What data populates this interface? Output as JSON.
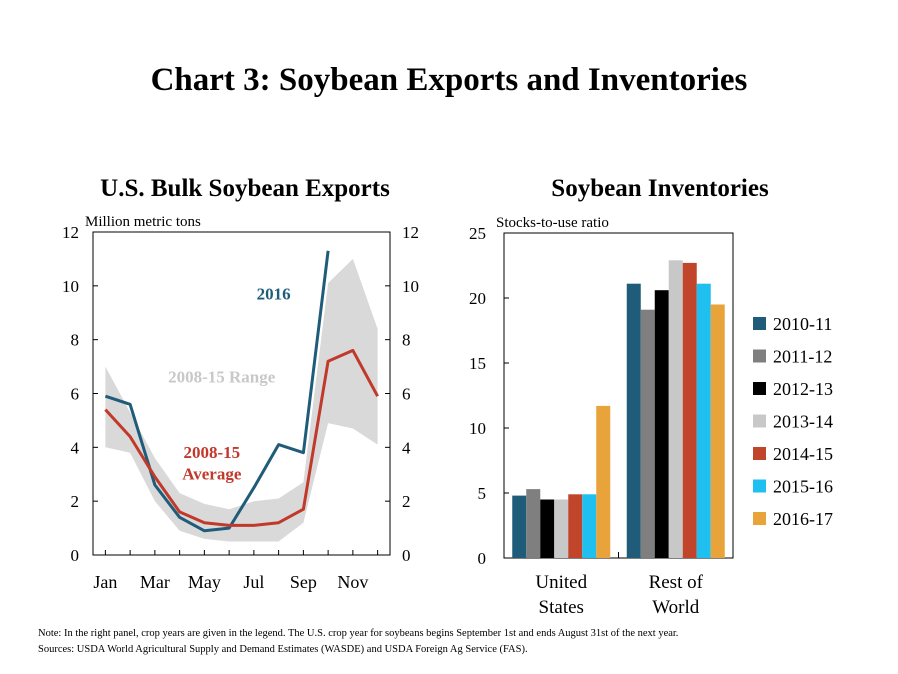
{
  "main_title": "Chart 3: Soybean Exports and Inventories",
  "note": "Note: In the right panel, crop years are given in the legend. The U.S. crop year for soybeans begins September 1st and ends August 31st of the next year.",
  "sources": "Sources: USDA World Agricultural Supply and Demand Estimates (WASDE) and USDA Foreign Ag Service (FAS).",
  "colors": {
    "series_2016": "#1f5c7a",
    "average": "#c0392b",
    "range": "#d9d9d9",
    "range_label": "#c8c8c8"
  },
  "chart_data": [
    {
      "type": "line",
      "title": "U.S. Bulk Soybean Exports",
      "ylabel": "Million metric tons",
      "ylim": [
        0,
        12
      ],
      "yticks": [
        0,
        2,
        4,
        6,
        8,
        10,
        12
      ],
      "x_ticks": [
        "Jan",
        "Mar",
        "May",
        "Jul",
        "Sep",
        "Nov"
      ],
      "x_positions": [
        1,
        3,
        5,
        7,
        9,
        11
      ],
      "xlim": [
        0.5,
        12.5
      ],
      "right_axis": true,
      "range_band": {
        "label": "2008-15 Range",
        "x": [
          1,
          2,
          3,
          4,
          5,
          6,
          7,
          8,
          9,
          10,
          11,
          12
        ],
        "low": [
          4.0,
          3.8,
          2.0,
          0.9,
          0.6,
          0.5,
          0.5,
          0.5,
          1.2,
          4.9,
          4.7,
          4.1
        ],
        "high": [
          7.0,
          5.3,
          3.6,
          2.3,
          1.9,
          1.7,
          2.0,
          2.1,
          2.7,
          10.1,
          11.0,
          8.4
        ]
      },
      "series": [
        {
          "name": "2016",
          "x": [
            1,
            2,
            3,
            4,
            5,
            6,
            7,
            8,
            9,
            10
          ],
          "values": [
            5.9,
            5.6,
            2.6,
            1.4,
            0.9,
            1.0,
            2.5,
            4.1,
            3.8,
            11.3
          ]
        },
        {
          "name": "2008-15 Average",
          "x": [
            1,
            2,
            3,
            4,
            5,
            6,
            7,
            8,
            9,
            10,
            11,
            12
          ],
          "values": [
            5.4,
            4.4,
            2.9,
            1.6,
            1.2,
            1.1,
            1.1,
            1.2,
            1.7,
            7.2,
            7.6,
            5.9
          ]
        }
      ],
      "labels": {
        "series_2016": "2016",
        "average_line1": "2008-15",
        "average_line2": "Average"
      }
    },
    {
      "type": "bar",
      "title": "Soybean Inventories",
      "ylabel": "Stocks-to-use ratio",
      "ylim": [
        0,
        25
      ],
      "yticks": [
        0,
        5,
        10,
        15,
        20,
        25
      ],
      "categories": [
        [
          "United",
          "States"
        ],
        [
          "Rest of",
          "World"
        ]
      ],
      "series": [
        {
          "name": "2010-11",
          "color": "#1f5c7a",
          "values": [
            4.8,
            21.1
          ]
        },
        {
          "name": "2011-12",
          "color": "#7f7f7f",
          "values": [
            5.3,
            19.1
          ]
        },
        {
          "name": "2012-13",
          "color": "#000000",
          "values": [
            4.5,
            20.6
          ]
        },
        {
          "name": "2013-14",
          "color": "#c8c8c8",
          "values": [
            4.5,
            22.9
          ]
        },
        {
          "name": "2014-15",
          "color": "#c0452b",
          "values": [
            4.9,
            22.7
          ]
        },
        {
          "name": "2015-16",
          "color": "#1fbfef",
          "values": [
            4.9,
            21.1
          ]
        },
        {
          "name": "2016-17",
          "color": "#e8a33a",
          "values": [
            11.7,
            19.5
          ]
        }
      ],
      "legend_position": "right"
    }
  ]
}
